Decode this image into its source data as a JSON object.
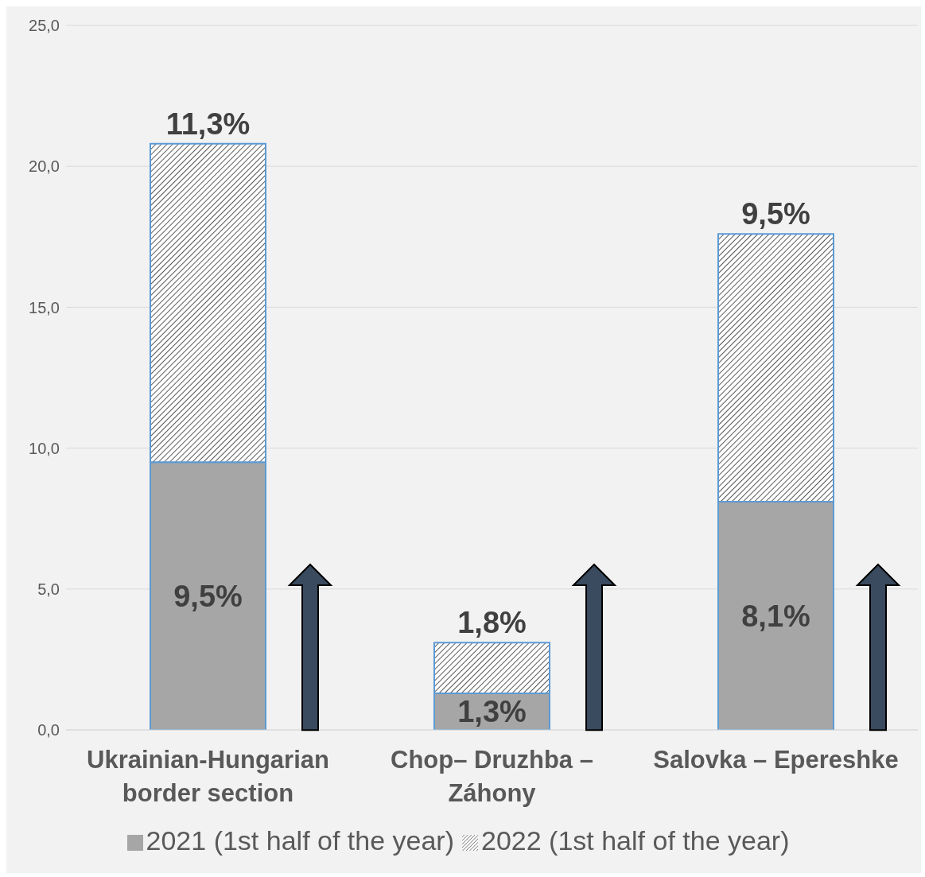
{
  "chart_data": {
    "type": "bar",
    "stacked": true,
    "categories": [
      "Ukrainian-Hungarian border section",
      "Chop– Druzhba – Záhony",
      "Salovka – Epereshke"
    ],
    "series": [
      {
        "name": "2021 (1st half of the year)",
        "color": "#a6a6a6",
        "values": [
          9.5,
          1.3,
          8.1
        ],
        "value_labels": [
          "9,5%",
          "1,3%",
          "8,1%"
        ]
      },
      {
        "name": "2022 (1st half of the year)",
        "color": "#5b9bd5",
        "values": [
          11.3,
          1.8,
          9.5
        ],
        "value_labels": [
          "11,3%",
          "1,8%",
          "9,5%"
        ]
      }
    ],
    "ylim": [
      0,
      25
    ],
    "yticks": [
      {
        "value": 0,
        "label": "0,0"
      },
      {
        "value": 5,
        "label": "5,0"
      },
      {
        "value": 10,
        "label": "10,0"
      },
      {
        "value": 15,
        "label": "15,0"
      },
      {
        "value": 20,
        "label": "20,0"
      },
      {
        "value": 25,
        "label": "25,0"
      }
    ],
    "grid": "y",
    "legend": "bottom"
  }
}
